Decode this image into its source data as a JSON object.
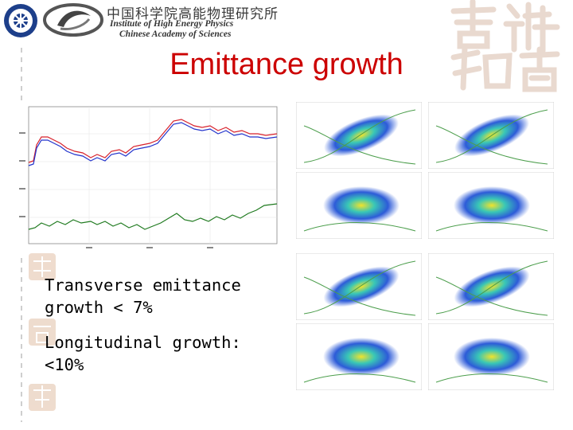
{
  "header": {
    "institute_zh": "中国科学院高能物理研究所",
    "institute_en_line1": "Institute of High Energy Physics",
    "institute_en_line2": "Chinese Academy of Sciences"
  },
  "slide": {
    "title": "Emittance growth",
    "bullets": [
      "Transverse emittance growth < 7%",
      "Longitudinal growth: <10%"
    ]
  },
  "colors": {
    "title": "#cc0000",
    "series_red": "#d8202a",
    "series_blue": "#2233cc",
    "series_green": "#1f7a1f"
  }
}
